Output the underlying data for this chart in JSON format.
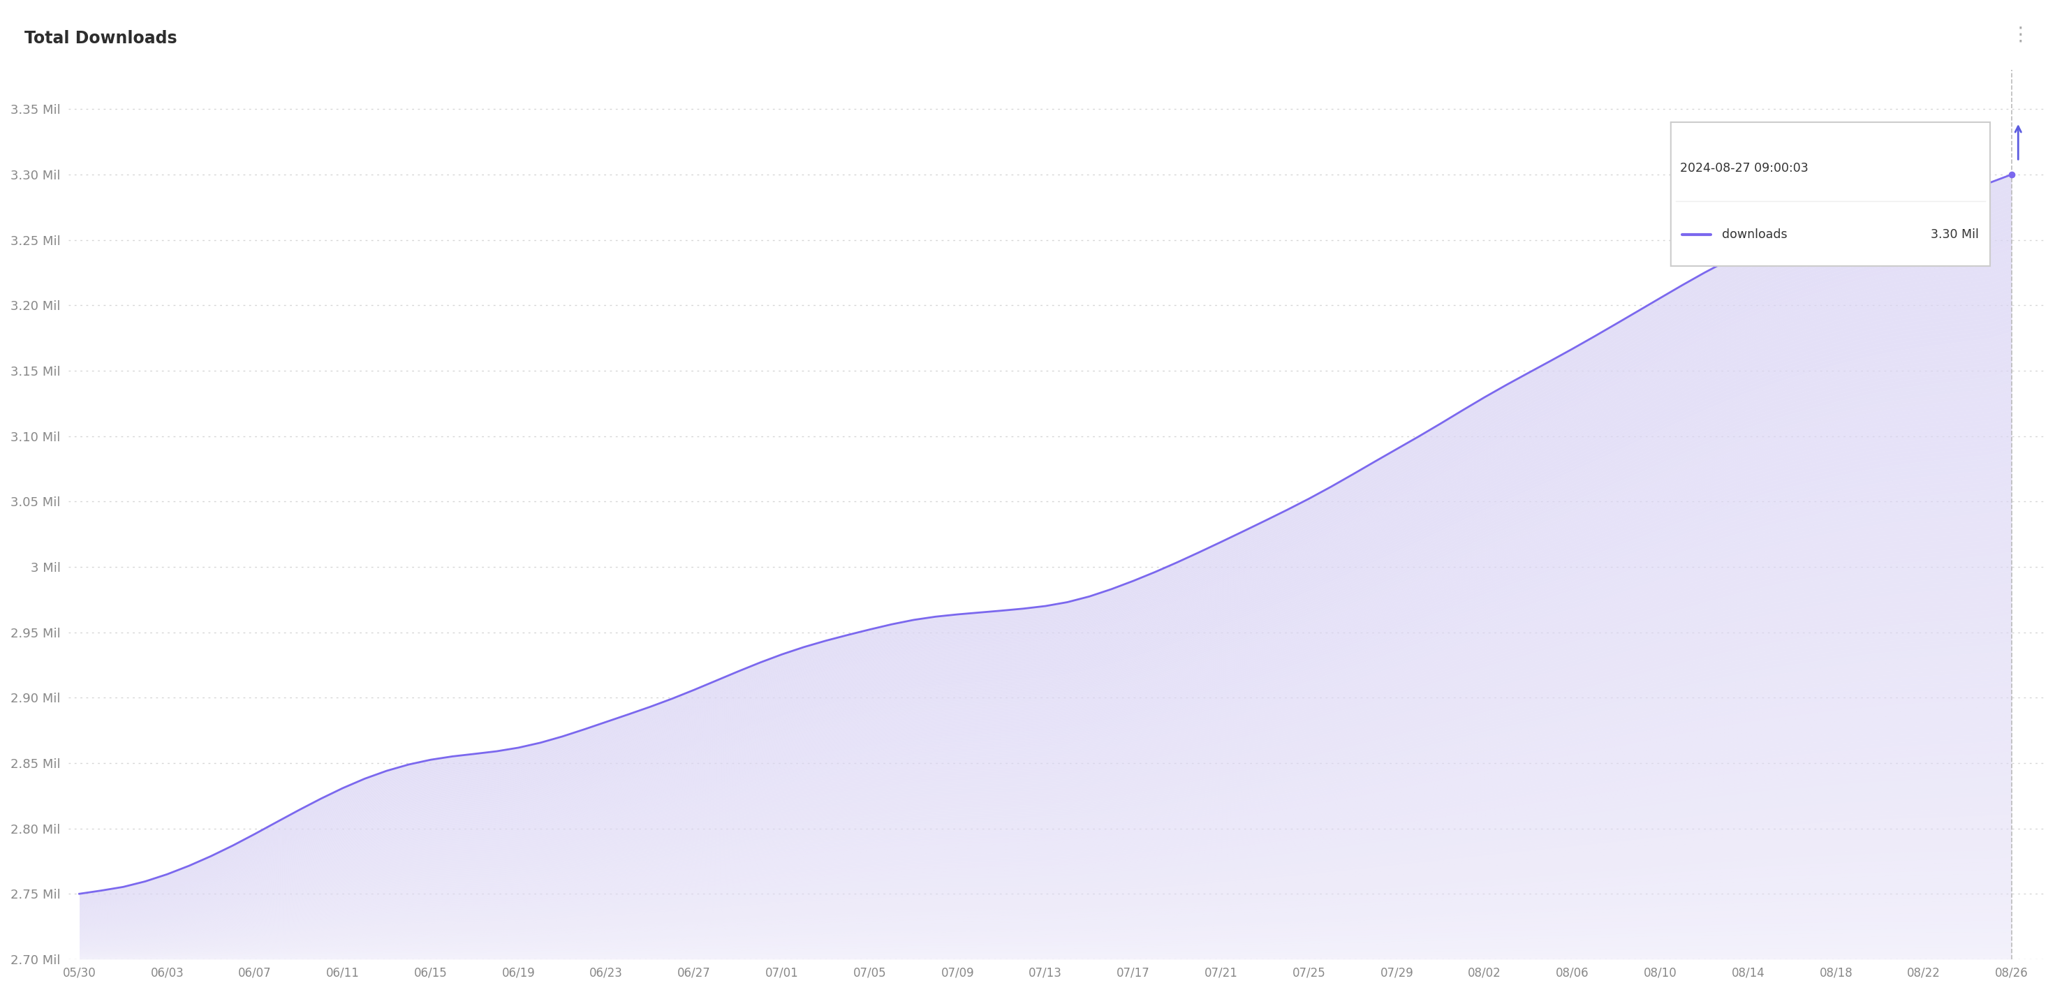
{
  "title": "Total Downloads",
  "title_fontsize": 17,
  "title_color": "#2d2d2d",
  "background_color": "#ffffff",
  "line_color": "#7b68ee",
  "fill_color": "#d8d4f5",
  "ylim_min": 2700000,
  "ylim_max": 3380000,
  "yticks": [
    2700000,
    2750000,
    2800000,
    2850000,
    2900000,
    2950000,
    3000000,
    3050000,
    3100000,
    3150000,
    3200000,
    3250000,
    3300000,
    3350000
  ],
  "ytick_labels": [
    "2.70 Mil",
    "2.75 Mil",
    "2.80 Mil",
    "2.85 Mil",
    "2.90 Mil",
    "2.95 Mil",
    "3 Mil",
    "3.05 Mil",
    "3.10 Mil",
    "3.15 Mil",
    "3.20 Mil",
    "3.25 Mil",
    "3.30 Mil",
    "3.35 Mil"
  ],
  "xtick_labels": [
    "05/30",
    "06/03",
    "06/07",
    "06/11",
    "06/15",
    "06/19",
    "06/23",
    "06/27",
    "07/01",
    "07/05",
    "07/09",
    "07/13",
    "07/17",
    "07/21",
    "07/25",
    "07/29",
    "08/02",
    "08/06",
    "08/10",
    "08/14",
    "08/18",
    "08/22",
    "08/26"
  ],
  "tooltip_date": "2024-08-27 09:00:03",
  "tooltip_label": "downloads",
  "tooltip_value": "3.30 Mil",
  "grid_color": "#cccccc",
  "tick_label_color": "#888888",
  "menu_icon_color": "#aaaaaa",
  "vline_color": "#bbbbbb",
  "arrow_color": "#5c5ce0"
}
